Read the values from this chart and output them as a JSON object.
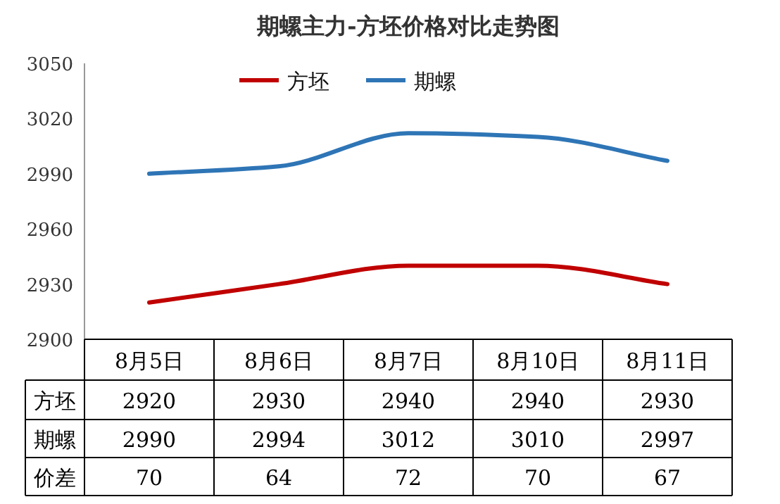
{
  "chart_data": {
    "type": "line",
    "title": "期螺主力-方坯价格对比走势图",
    "categories": [
      "8月5日",
      "8月6日",
      "8月7日",
      "8月10日",
      "8月11日"
    ],
    "series": [
      {
        "name": "方坯",
        "color": "#c00000",
        "values": [
          2920,
          2930,
          2940,
          2940,
          2930
        ]
      },
      {
        "name": "期螺",
        "color": "#2e75b6",
        "values": [
          2990,
          2994,
          3012,
          3010,
          2997
        ]
      }
    ],
    "annotations": [
      "价差",
      "70",
      "64",
      "72",
      "70",
      "67"
    ],
    "ylim": [
      2900,
      3050
    ],
    "yticks": [
      2900,
      2930,
      2960,
      2990,
      3020,
      3050
    ],
    "data_labels": true,
    "legend": "top",
    "grid": false,
    "marker": "none",
    "line_style": "solid"
  }
}
